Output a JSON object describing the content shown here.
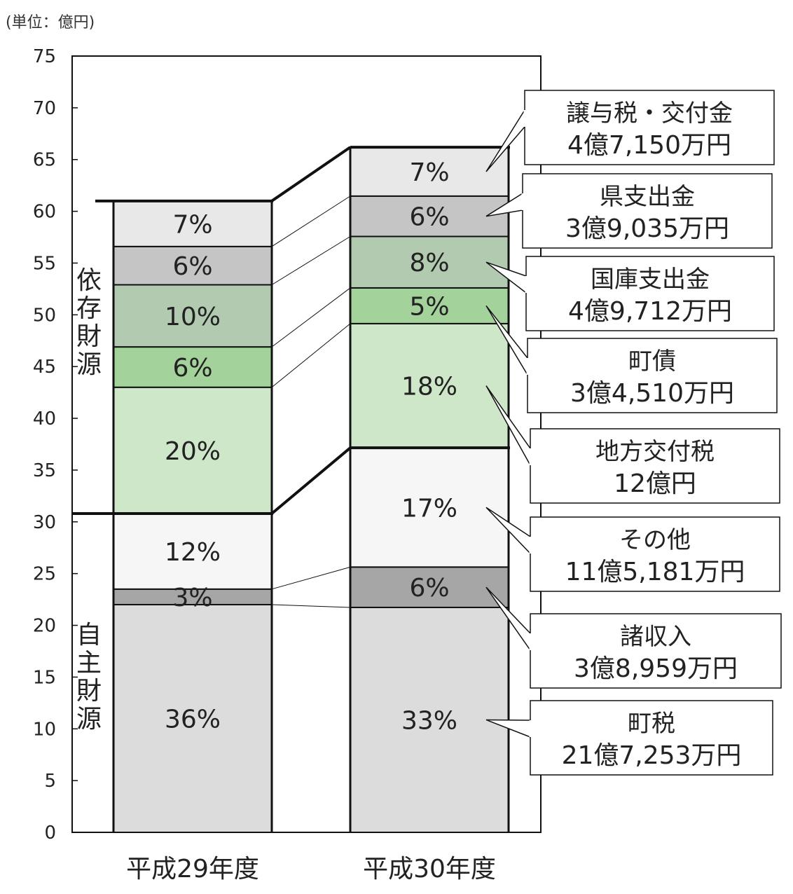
{
  "unit_label": "(単位：億円)",
  "chart_data": {
    "type": "bar",
    "stacked": true,
    "ylim": [
      0,
      75
    ],
    "yticks": [
      "0",
      "5",
      "10",
      "15",
      "20",
      "25",
      "30",
      "35",
      "40",
      "45",
      "50",
      "55",
      "60",
      "65",
      "70",
      "75"
    ],
    "categories": [
      "平成29年度",
      "平成30年度"
    ],
    "groups": {
      "dependent": "依存財源",
      "independent": "自主財源"
    },
    "series": [
      {
        "key": "town_tax",
        "group": "independent",
        "color": "#dcdcdc",
        "values": [
          22.0,
          21.73
        ],
        "labels": [
          "36%",
          "33%"
        ],
        "callout": {
          "name": "町税",
          "amount": "21億7,253万円"
        }
      },
      {
        "key": "misc",
        "group": "independent",
        "color": "#a6a6a6",
        "values": [
          1.5,
          3.9
        ],
        "labels": [
          "3%",
          "6%"
        ],
        "callout": {
          "name": "諸収入",
          "amount": "3億8,959万円"
        }
      },
      {
        "key": "other",
        "group": "independent",
        "color": "#f6f6f6",
        "values": [
          7.3,
          11.52
        ],
        "labels": [
          "12%",
          "17%"
        ],
        "callout": {
          "name": "その他",
          "amount": "11億5,181万円"
        }
      },
      {
        "key": "local_tax",
        "group": "dependent",
        "color": "#cfe7c9",
        "values": [
          12.2,
          12.0
        ],
        "labels": [
          "20%",
          "18%"
        ],
        "callout": {
          "name": "地方交付税",
          "amount": "12億円"
        }
      },
      {
        "key": "bonds",
        "group": "dependent",
        "color": "#a4d29b",
        "values": [
          3.9,
          3.45
        ],
        "labels": [
          "6%",
          "5%"
        ],
        "callout": {
          "name": "町債",
          "amount": "3億4,510万円"
        }
      },
      {
        "key": "national",
        "group": "dependent",
        "color": "#b2cbb0",
        "values": [
          6.0,
          4.97
        ],
        "labels": [
          "10%",
          "8%"
        ],
        "callout": {
          "name": "国庫支出金",
          "amount": "4億9,712万円"
        }
      },
      {
        "key": "prefecture",
        "group": "dependent",
        "color": "#c5c5c5",
        "values": [
          3.7,
          3.9
        ],
        "labels": [
          "6%",
          "6%"
        ],
        "callout": {
          "name": "県支出金",
          "amount": "3億9,035万円"
        }
      },
      {
        "key": "transfer",
        "group": "dependent",
        "color": "#e8e8e8",
        "values": [
          4.4,
          4.72
        ],
        "labels": [
          "7%",
          "7%"
        ],
        "callout": {
          "name": "譲与税・交付金",
          "amount": "4億7,150万円"
        }
      }
    ]
  }
}
